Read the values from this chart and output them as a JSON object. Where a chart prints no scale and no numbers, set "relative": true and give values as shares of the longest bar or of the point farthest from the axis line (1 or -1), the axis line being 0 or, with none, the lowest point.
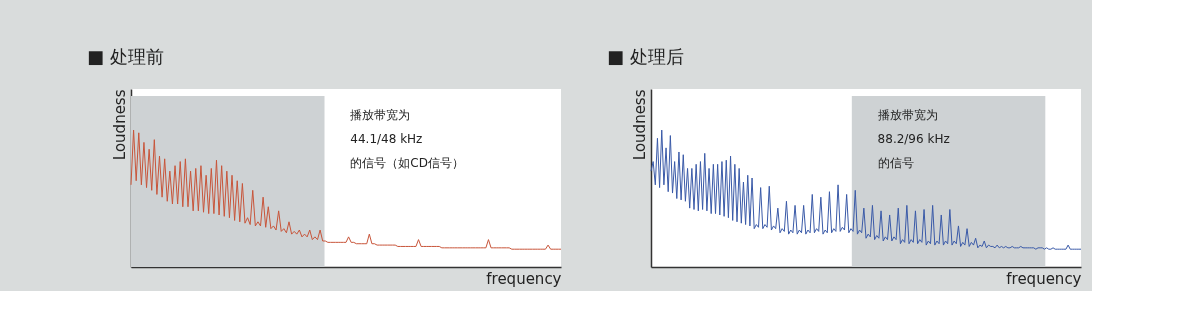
{
  "chart_data": [
    {
      "type": "line",
      "title": "■ 处理前",
      "xlabel": "frequency",
      "ylabel": "Loudness",
      "relative": true,
      "tick_labels": false,
      "grid": false,
      "categories": [
        null,
        null,
        null,
        null,
        null,
        null,
        null,
        null,
        null,
        null,
        null,
        null,
        null,
        null,
        null,
        null,
        null,
        null,
        null,
        null,
        null,
        null,
        null,
        null,
        null,
        null,
        null,
        null,
        null,
        null,
        null,
        null,
        null,
        null,
        null,
        null,
        null,
        null,
        null,
        null,
        null,
        null,
        null,
        null,
        null,
        null,
        null,
        null,
        null,
        null,
        null,
        null,
        null,
        null,
        null,
        null,
        null,
        null,
        null,
        null,
        null,
        null,
        null,
        null,
        null,
        null,
        null,
        null,
        null,
        null,
        null,
        null,
        null,
        null,
        null,
        null,
        null,
        null,
        null,
        null,
        null,
        null,
        null,
        null,
        null,
        null,
        null,
        null,
        null,
        null,
        null,
        null,
        null,
        null,
        null,
        null,
        null,
        null,
        null,
        null,
        null,
        null,
        null,
        null,
        null,
        null,
        null,
        null,
        null,
        null,
        null,
        null,
        null,
        null,
        null,
        null,
        null,
        null,
        null,
        null,
        null,
        null,
        null,
        null,
        null,
        null,
        null,
        null,
        null,
        null,
        null,
        null,
        null,
        null,
        null,
        null,
        null,
        null,
        null,
        null,
        null,
        null,
        null,
        null,
        null,
        null,
        null,
        null,
        null,
        null,
        null,
        null,
        null,
        null,
        null,
        null,
        null,
        null,
        null,
        null,
        null,
        null,
        null,
        null,
        null,
        null,
        null
      ],
      "annotations": [
        "播放带宽为\n44.1/48 kHz\n的信号（如CD信号）"
      ],
      "series": [
        {
          "color": "#c8553a",
          "values": [
            0.6,
            1.0,
            0.63,
            0.98,
            0.6,
            0.91,
            0.58,
            0.86,
            0.56,
            0.93,
            0.53,
            0.81,
            0.51,
            0.79,
            0.48,
            0.7,
            0.46,
            0.74,
            0.46,
            0.77,
            0.44,
            0.79,
            0.44,
            0.7,
            0.41,
            0.72,
            0.41,
            0.74,
            0.4,
            0.67,
            0.39,
            0.72,
            0.39,
            0.78,
            0.38,
            0.74,
            0.37,
            0.7,
            0.36,
            0.67,
            0.34,
            0.63,
            0.33,
            0.61,
            0.32,
            0.36,
            0.31,
            0.56,
            0.3,
            0.33,
            0.3,
            0.51,
            0.29,
            0.44,
            0.28,
            0.3,
            0.27,
            0.41,
            0.26,
            0.28,
            0.25,
            0.33,
            0.24,
            0.26,
            0.24,
            0.27,
            0.22,
            0.24,
            0.22,
            0.27,
            0.2,
            0.22,
            0.2,
            0.27,
            0.19,
            0.19,
            0.18,
            0.18,
            0.18,
            0.18,
            0.18,
            0.18,
            0.18,
            0.18,
            0.22,
            0.18,
            0.18,
            0.17,
            0.17,
            0.17,
            0.17,
            0.17,
            0.24,
            0.17,
            0.17,
            0.16,
            0.16,
            0.16,
            0.16,
            0.16,
            0.16,
            0.16,
            0.16,
            0.15,
            0.15,
            0.15,
            0.15,
            0.15,
            0.15,
            0.15,
            0.15,
            0.2,
            0.15,
            0.15,
            0.15,
            0.15,
            0.15,
            0.15,
            0.15,
            0.15,
            0.14,
            0.14,
            0.14,
            0.14,
            0.14,
            0.14,
            0.14,
            0.14,
            0.14,
            0.14,
            0.14,
            0.14,
            0.14,
            0.14,
            0.14,
            0.14,
            0.14,
            0.14,
            0.2,
            0.14,
            0.14,
            0.14,
            0.14,
            0.14,
            0.14,
            0.14,
            0.14,
            0.13,
            0.13,
            0.13,
            0.13,
            0.13,
            0.13,
            0.13,
            0.13,
            0.13,
            0.13,
            0.13,
            0.13,
            0.13,
            0.13,
            0.16,
            0.13,
            0.13,
            0.13,
            0.13,
            0.13
          ]
        }
      ]
    },
    {
      "type": "line",
      "title": "■ 处理后",
      "xlabel": "frequency",
      "ylabel": "Loudness",
      "relative": true,
      "tick_labels": false,
      "grid": false,
      "categories": [
        null,
        null,
        null,
        null,
        null,
        null,
        null,
        null,
        null,
        null,
        null,
        null,
        null,
        null,
        null,
        null,
        null,
        null,
        null,
        null,
        null,
        null,
        null,
        null,
        null,
        null,
        null,
        null,
        null,
        null,
        null,
        null,
        null,
        null,
        null,
        null,
        null,
        null,
        null,
        null,
        null,
        null,
        null,
        null,
        null,
        null,
        null,
        null,
        null,
        null,
        null,
        null,
        null,
        null,
        null,
        null,
        null,
        null,
        null,
        null,
        null,
        null,
        null,
        null,
        null,
        null,
        null,
        null,
        null,
        null,
        null,
        null,
        null,
        null,
        null,
        null,
        null,
        null,
        null,
        null,
        null,
        null,
        null,
        null,
        null,
        null,
        null,
        null,
        null,
        null,
        null,
        null,
        null,
        null,
        null,
        null,
        null,
        null,
        null,
        null,
        null,
        null,
        null,
        null,
        null,
        null,
        null,
        null,
        null,
        null,
        null,
        null,
        null,
        null,
        null,
        null,
        null,
        null,
        null,
        null,
        null,
        null,
        null,
        null,
        null,
        null,
        null,
        null,
        null,
        null,
        null,
        null,
        null,
        null,
        null,
        null,
        null,
        null,
        null,
        null,
        null,
        null,
        null,
        null,
        null,
        null,
        null,
        null,
        null,
        null,
        null,
        null,
        null,
        null,
        null,
        null,
        null,
        null,
        null,
        null,
        null,
        null,
        null,
        null,
        null,
        null,
        null,
        null,
        null,
        null,
        null,
        null,
        null,
        null,
        null,
        null,
        null,
        null,
        null,
        null,
        null,
        null,
        null,
        null,
        null,
        null,
        null,
        null,
        null,
        null,
        null,
        null,
        null,
        null,
        null,
        null,
        null,
        null,
        null,
        null,
        null
      ],
      "annotations": [
        "播放带宽为\n88.2/96 kHz\n的信号"
      ],
      "series": [
        {
          "color": "#3a5aa8",
          "values": [
            0.7,
            0.77,
            0.6,
            0.94,
            0.58,
            1.0,
            0.6,
            0.87,
            0.55,
            0.96,
            0.54,
            0.77,
            0.5,
            0.84,
            0.49,
            0.82,
            0.48,
            0.72,
            0.43,
            0.72,
            0.42,
            0.75,
            0.41,
            0.77,
            0.42,
            0.83,
            0.41,
            0.72,
            0.39,
            0.75,
            0.39,
            0.75,
            0.38,
            0.77,
            0.37,
            0.78,
            0.36,
            0.81,
            0.34,
            0.75,
            0.33,
            0.72,
            0.32,
            0.62,
            0.31,
            0.67,
            0.3,
            0.65,
            0.28,
            0.31,
            0.29,
            0.58,
            0.28,
            0.31,
            0.29,
            0.59,
            0.27,
            0.3,
            0.28,
            0.43,
            0.25,
            0.28,
            0.26,
            0.48,
            0.24,
            0.27,
            0.25,
            0.45,
            0.24,
            0.27,
            0.25,
            0.45,
            0.24,
            0.27,
            0.25,
            0.53,
            0.25,
            0.28,
            0.26,
            0.51,
            0.24,
            0.27,
            0.25,
            0.55,
            0.25,
            0.28,
            0.26,
            0.6,
            0.26,
            0.29,
            0.27,
            0.53,
            0.25,
            0.28,
            0.26,
            0.56,
            0.24,
            0.27,
            0.25,
            0.43,
            0.21,
            0.24,
            0.22,
            0.45,
            0.2,
            0.23,
            0.21,
            0.41,
            0.19,
            0.22,
            0.2,
            0.38,
            0.19,
            0.22,
            0.2,
            0.43,
            0.17,
            0.2,
            0.18,
            0.45,
            0.17,
            0.2,
            0.18,
            0.41,
            0.17,
            0.2,
            0.18,
            0.42,
            0.16,
            0.19,
            0.17,
            0.45,
            0.16,
            0.19,
            0.17,
            0.38,
            0.16,
            0.19,
            0.17,
            0.42,
            0.16,
            0.19,
            0.17,
            0.3,
            0.15,
            0.18,
            0.16,
            0.28,
            0.15,
            0.18,
            0.16,
            0.21,
            0.14,
            0.16,
            0.15,
            0.19,
            0.14,
            0.16,
            0.15,
            0.15,
            0.14,
            0.16,
            0.14,
            0.15,
            0.14,
            0.15,
            0.14,
            0.14,
            0.15,
            0.14,
            0.14,
            0.14,
            0.15,
            0.14,
            0.14,
            0.14,
            0.14,
            0.14,
            0.14,
            0.13,
            0.14,
            0.14,
            0.14,
            0.13,
            0.14,
            0.13,
            0.13,
            0.14,
            0.13,
            0.13,
            0.13,
            0.13,
            0.13,
            0.13,
            0.16,
            0.13,
            0.13,
            0.13,
            0.13,
            0.13,
            0.13
          ]
        }
      ]
    }
  ]
}
